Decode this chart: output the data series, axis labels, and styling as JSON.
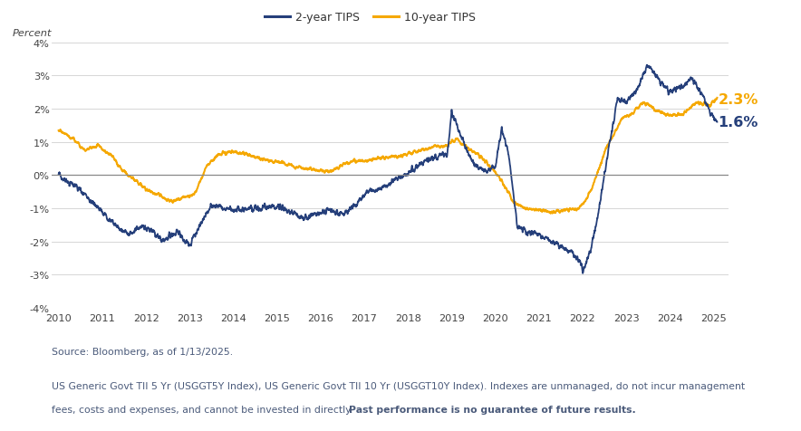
{
  "ylabel": "Percent",
  "source_text": "Source: Bloomberg, as of 1/13/2025.",
  "footnote_line1": "US Generic Govt TII 5 Yr (USGGT5Y Index), US Generic Govt TII 10 Yr (USGGT10Y Index). Indexes are unmanaged, do not incur management",
  "footnote_line2_regular": "fees, costs and expenses, and cannot be invested in directly. ",
  "footnote_bold": "Past performance is no guarantee of future results.",
  "legend_label_2y": "2-year TIPS",
  "legend_label_10y": "10-year TIPS",
  "color_2y": "#253f7a",
  "color_10y": "#f5a800",
  "text_color": "#4a5568",
  "annotation_10y": "2.3%",
  "annotation_2y": "1.6%",
  "ylim": [
    -4,
    4
  ],
  "yticks": [
    -4,
    -3,
    -2,
    -1,
    0,
    1,
    2,
    3,
    4
  ],
  "xlim_start": 2009.85,
  "xlim_end": 2025.35,
  "xticks": [
    2010,
    2011,
    2012,
    2013,
    2014,
    2015,
    2016,
    2017,
    2018,
    2019,
    2020,
    2021,
    2022,
    2023,
    2024,
    2025
  ],
  "background_color": "#ffffff",
  "grid_color": "#d0d0d0"
}
